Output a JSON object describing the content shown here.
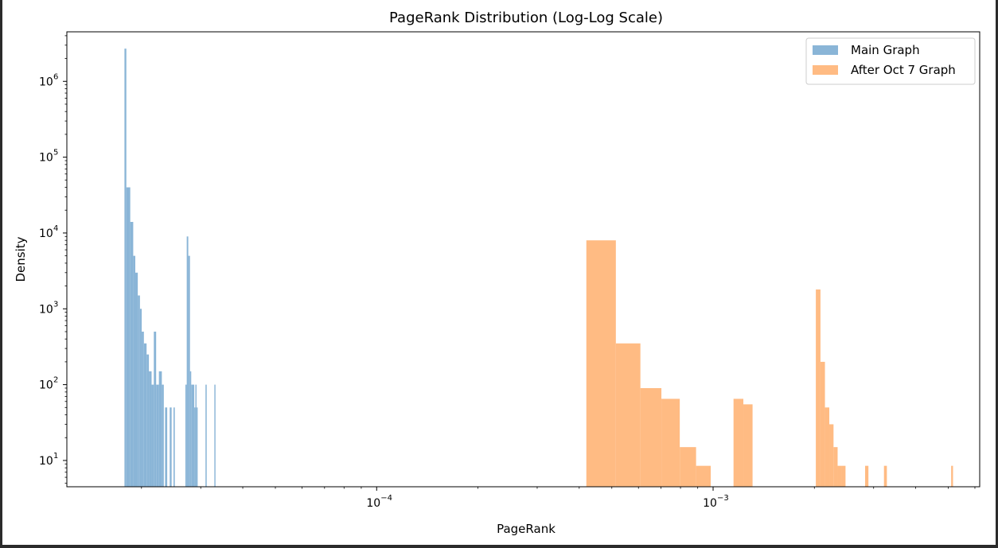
{
  "chart_data": {
    "type": "histogram",
    "title": "PageRank Distribution (Log-Log Scale)",
    "xlabel": "PageRank",
    "ylabel": "Density",
    "xscale": "log",
    "yscale": "log",
    "xlim": [
      1.2e-05,
      0.0062
    ],
    "ylim": [
      4.5,
      4500000
    ],
    "x_ticks": [
      {
        "value": 0.0001,
        "base": "10",
        "exp": "−4"
      },
      {
        "value": 0.001,
        "base": "10",
        "exp": "−3"
      }
    ],
    "y_ticks": [
      {
        "value": 10,
        "base": "10",
        "exp": "1"
      },
      {
        "value": 100,
        "base": "10",
        "exp": "2"
      },
      {
        "value": 1000,
        "base": "10",
        "exp": "3"
      },
      {
        "value": 10000,
        "base": "10",
        "exp": "4"
      },
      {
        "value": 100000,
        "base": "10",
        "exp": "5"
      },
      {
        "value": 1000000,
        "base": "10",
        "exp": "6"
      }
    ],
    "legend_position": "top-right",
    "grid": false,
    "series": [
      {
        "name": "Main Graph",
        "color": "#8ab5d7",
        "bins": [
          {
            "x0": 1.78e-05,
            "x1": 1.803e-05,
            "y": 2700000
          },
          {
            "x0": 1.803e-05,
            "x1": 1.852e-05,
            "y": 40000
          },
          {
            "x0": 1.852e-05,
            "x1": 1.89e-05,
            "y": 14000
          },
          {
            "x0": 1.89e-05,
            "x1": 1.917e-05,
            "y": 5000
          },
          {
            "x0": 1.917e-05,
            "x1": 1.95e-05,
            "y": 3000
          },
          {
            "x0": 1.95e-05,
            "x1": 1.979e-05,
            "y": 1500
          },
          {
            "x0": 1.979e-05,
            "x1": 2.003e-05,
            "y": 1000
          },
          {
            "x0": 2.003e-05,
            "x1": 2.033e-05,
            "y": 500
          },
          {
            "x0": 2.033e-05,
            "x1": 2.071e-05,
            "y": 350
          },
          {
            "x0": 2.071e-05,
            "x1": 2.104e-05,
            "y": 250
          },
          {
            "x0": 2.104e-05,
            "x1": 2.143e-05,
            "y": 150
          },
          {
            "x0": 2.143e-05,
            "x1": 2.176e-05,
            "y": 100
          },
          {
            "x0": 2.176e-05,
            "x1": 2.211e-05,
            "y": 500
          },
          {
            "x0": 2.211e-05,
            "x1": 2.253e-05,
            "y": 100
          },
          {
            "x0": 2.253e-05,
            "x1": 2.299e-05,
            "y": 150
          },
          {
            "x0": 2.299e-05,
            "x1": 2.33e-05,
            "y": 100
          },
          {
            "x0": 2.35e-05,
            "x1": 2.385e-05,
            "y": 50
          },
          {
            "x0": 2.426e-05,
            "x1": 2.458e-05,
            "y": 50
          },
          {
            "x0": 2.49e-05,
            "x1": 2.512e-05,
            "y": 50
          },
          {
            "x0": 2.701e-05,
            "x1": 2.726e-05,
            "y": 100
          },
          {
            "x0": 2.726e-05,
            "x1": 2.755e-05,
            "y": 9000
          },
          {
            "x0": 2.755e-05,
            "x1": 2.787e-05,
            "y": 5000
          },
          {
            "x0": 2.787e-05,
            "x1": 2.811e-05,
            "y": 150
          },
          {
            "x0": 2.811e-05,
            "x1": 2.87e-05,
            "y": 100
          },
          {
            "x0": 2.87e-05,
            "x1": 2.892e-05,
            "y": 50
          },
          {
            "x0": 2.892e-05,
            "x1": 2.915e-05,
            "y": 100
          },
          {
            "x0": 2.915e-05,
            "x1": 2.938e-05,
            "y": 50
          },
          {
            "x0": 3.099e-05,
            "x1": 3.125e-05,
            "y": 100
          },
          {
            "x0": 3.293e-05,
            "x1": 3.319e-05,
            "y": 100
          }
        ]
      },
      {
        "name": "After Oct 7 Graph",
        "color": "#ffbb83",
        "bins": [
          {
            "x0": 0.00042,
            "x1": 0.000514,
            "y": 8000
          },
          {
            "x0": 0.000514,
            "x1": 0.000608,
            "y": 350
          },
          {
            "x0": 0.000608,
            "x1": 0.000702,
            "y": 90
          },
          {
            "x0": 0.000702,
            "x1": 0.000796,
            "y": 65
          },
          {
            "x0": 0.000796,
            "x1": 0.00089,
            "y": 15
          },
          {
            "x0": 0.00089,
            "x1": 0.000984,
            "y": 8.5
          },
          {
            "x0": 0.00115,
            "x1": 0.00123,
            "y": 65
          },
          {
            "x0": 0.00123,
            "x1": 0.00131,
            "y": 55
          },
          {
            "x0": 0.00202,
            "x1": 0.002085,
            "y": 1800
          },
          {
            "x0": 0.002085,
            "x1": 0.00215,
            "y": 200
          },
          {
            "x0": 0.00215,
            "x1": 0.002215,
            "y": 50
          },
          {
            "x0": 0.002215,
            "x1": 0.00228,
            "y": 30
          },
          {
            "x0": 0.00228,
            "x1": 0.002345,
            "y": 15
          },
          {
            "x0": 0.002345,
            "x1": 0.00241,
            "y": 8.5
          },
          {
            "x0": 0.00241,
            "x1": 0.002475,
            "y": 8.5
          },
          {
            "x0": 0.00283,
            "x1": 0.002895,
            "y": 8.5
          },
          {
            "x0": 0.00322,
            "x1": 0.003285,
            "y": 8.5
          },
          {
            "x0": 0.0051,
            "x1": 0.005165,
            "y": 8.5
          }
        ]
      }
    ]
  }
}
